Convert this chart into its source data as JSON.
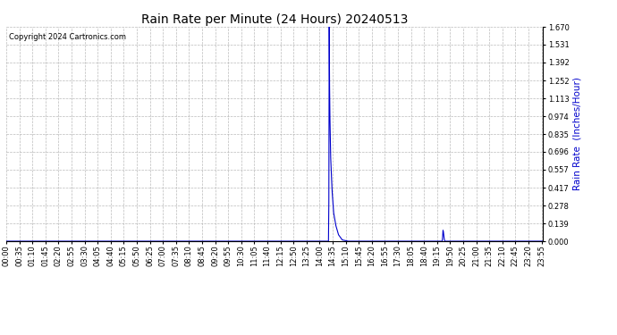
{
  "title": "Rain Rate per Minute (24 Hours) 20240513",
  "copyright_text": "Copyright 2024 Cartronics.com",
  "ylabel": "Rain Rate  (Inches/Hour)",
  "ylabel_color": "#0000cc",
  "line_color": "#0000cc",
  "background_color": "#ffffff",
  "grid_color": "#aaaaaa",
  "ylim": [
    0.0,
    1.67
  ],
  "yticks": [
    0.0,
    0.139,
    0.278,
    0.417,
    0.557,
    0.696,
    0.835,
    0.974,
    1.113,
    1.252,
    1.392,
    1.531,
    1.67
  ],
  "total_minutes": 1440,
  "peak_minute": 866,
  "peak_value": 1.67,
  "small_peak_minute": 1170,
  "small_peak_value": 0.085,
  "xtick_times": [
    "00:00",
    "00:35",
    "01:10",
    "01:45",
    "02:20",
    "02:55",
    "03:30",
    "04:05",
    "04:40",
    "05:15",
    "05:50",
    "06:25",
    "07:00",
    "07:35",
    "08:10",
    "08:45",
    "09:20",
    "09:55",
    "10:30",
    "11:05",
    "11:40",
    "12:15",
    "12:50",
    "13:25",
    "14:00",
    "14:35",
    "15:10",
    "15:45",
    "16:20",
    "16:55",
    "17:30",
    "18:05",
    "18:40",
    "19:15",
    "19:50",
    "20:25",
    "21:00",
    "21:35",
    "22:10",
    "22:45",
    "23:20",
    "23:55"
  ],
  "title_fontsize": 10,
  "tick_fontsize": 6,
  "ylabel_fontsize": 7.5,
  "copyright_fontsize": 6
}
